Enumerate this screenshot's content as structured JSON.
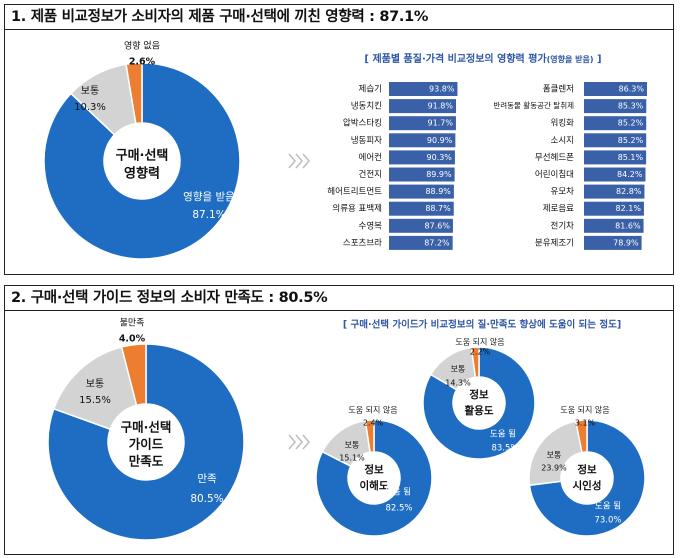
{
  "panel1": {
    "title": "1. 제품 비교정보가 소비자의 제품 구매·선택에 끼친 영향력 : 87.1%",
    "center_label": [
      "구매·선택",
      "영향력"
    ],
    "bar_header": "[ 제품별 품질·가격 비교정보의 영향력 평가",
    "bar_header_small": "(영향을 받음)",
    "bar_header_end": " ]"
  },
  "panel2": {
    "title": "2. 구매·선택 가이드 정보의 소비자 만족도 : 80.5%",
    "center_label": [
      "구매·선택",
      "가이드",
      "만족도"
    ],
    "donut_header": "[ 구매·선택 가이드가 비교정보의 질·만족도 향상에 도움이 되는 정도]"
  },
  "colors": {
    "blue": "#1f6dc2",
    "gray": "#d3d3d3",
    "orange": "#ed7d31",
    "bar": "#3a60a8"
  },
  "chart_data": [
    {
      "type": "pie",
      "title": "구매·선택 영향력",
      "slices": [
        {
          "label": "영향을 받음",
          "value": 87.1,
          "display": "87.1%",
          "color": "#1f6dc2"
        },
        {
          "label": "보통",
          "value": 10.3,
          "display": "10.3%",
          "color": "#d3d3d3"
        },
        {
          "label": "영향 없음",
          "value": 2.6,
          "display": "2.6%",
          "color": "#ed7d31"
        }
      ]
    },
    {
      "type": "bar",
      "title": "[ 제품별 품질·가격 비교정보의 영향력 평가(영향을 받음) ]",
      "xlim": [
        0,
        100
      ],
      "groups": [
        {
          "categories": [
            "제습기",
            "냉동치킨",
            "압박스타킹",
            "냉동피자",
            "에어컨",
            "건전지",
            "헤어트리트먼트",
            "의류용 표백제",
            "수영복",
            "스포츠브라"
          ],
          "values": [
            93.8,
            91.8,
            91.7,
            90.9,
            90.3,
            89.9,
            88.9,
            88.7,
            87.6,
            87.2
          ],
          "labels": [
            "93.8%",
            "91.8%",
            "91.7%",
            "90.9%",
            "90.3%",
            "89.9%",
            "88.9%",
            "88.7%",
            "87.6%",
            "87.2%"
          ]
        },
        {
          "categories": [
            "폼클렌저",
            "반려동물 활동공간 탈취제",
            "워킹화",
            "소시지",
            "무선헤드폰",
            "어린이침대",
            "유모차",
            "제로음료",
            "전기차",
            "분유제조기"
          ],
          "values": [
            86.3,
            85.3,
            85.2,
            85.2,
            85.1,
            84.2,
            82.8,
            82.1,
            81.6,
            78.9
          ],
          "labels": [
            "86.3%",
            "85.3%",
            "85.2%",
            "85.2%",
            "85.1%",
            "84.2%",
            "82.8%",
            "82.1%",
            "81.6%",
            "78.9%"
          ]
        }
      ]
    },
    {
      "type": "pie",
      "title": "구매·선택 가이드 만족도",
      "slices": [
        {
          "label": "만족",
          "value": 80.5,
          "display": "80.5%",
          "color": "#1f6dc2"
        },
        {
          "label": "보통",
          "value": 15.5,
          "display": "15.5%",
          "color": "#d3d3d3"
        },
        {
          "label": "불만족",
          "value": 4.0,
          "display": "4.0%",
          "color": "#ed7d31"
        }
      ]
    },
    {
      "type": "pie",
      "title": "정보 이해도",
      "center": [
        "정보",
        "이해도"
      ],
      "slices": [
        {
          "label": "도움 됨",
          "value": 82.5,
          "display": "82.5%",
          "color": "#1f6dc2"
        },
        {
          "label": "보통",
          "value": 15.1,
          "display": "15.1%",
          "color": "#d3d3d3"
        },
        {
          "label": "도움 되지 않음",
          "value": 2.4,
          "display": "2.4%",
          "color": "#ed7d31"
        }
      ]
    },
    {
      "type": "pie",
      "title": "정보 활용도",
      "center": [
        "정보",
        "활용도"
      ],
      "slices": [
        {
          "label": "도움 됨",
          "value": 83.5,
          "display": "83.5%",
          "color": "#1f6dc2"
        },
        {
          "label": "보통",
          "value": 14.3,
          "display": "14.3%",
          "color": "#d3d3d3"
        },
        {
          "label": "도움 되지 않음",
          "value": 2.2,
          "display": "2.2%",
          "color": "#ed7d31"
        }
      ]
    },
    {
      "type": "pie",
      "title": "정보 시인성",
      "center": [
        "정보",
        "시인성"
      ],
      "slices": [
        {
          "label": "도움 됨",
          "value": 73.0,
          "display": "73.0%",
          "color": "#1f6dc2"
        },
        {
          "label": "보통",
          "value": 23.9,
          "display": "23.9%",
          "color": "#d3d3d3"
        },
        {
          "label": "도움 되지 않음",
          "value": 3.1,
          "display": "3.1%",
          "color": "#ed7d31"
        }
      ]
    }
  ]
}
